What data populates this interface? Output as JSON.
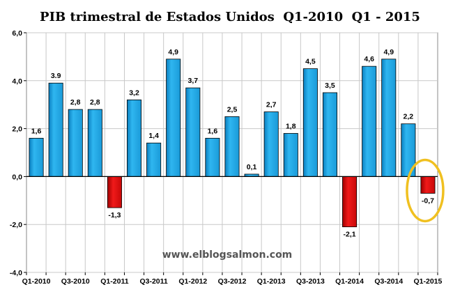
{
  "chart_data": {
    "type": "bar",
    "title": "PIB trimestral de Estados Unidos  Q1-2010  Q1 - 2015",
    "xlabel": "",
    "ylabel": "",
    "ylim": [
      -4.0,
      6.0
    ],
    "y_ticks": [
      "6,0",
      "4,0",
      "2,0",
      "0,0",
      "-2,0",
      "-4,0"
    ],
    "y_tick_values": [
      6,
      4,
      2,
      0,
      -2,
      -4
    ],
    "categories": [
      "Q1-2010",
      "Q2-2010",
      "Q3-2010",
      "Q4-2010",
      "Q1-2011",
      "Q2-2011",
      "Q3-2011",
      "Q4-2011",
      "Q1-2012",
      "Q2-2012",
      "Q3-2012",
      "Q4-2012",
      "Q1-2013",
      "Q2-2013",
      "Q3-2013",
      "Q4-2013",
      "Q1-2014",
      "Q2-2014",
      "Q3-2014",
      "Q4-2014",
      "Q1-2015"
    ],
    "category_labels_shown": [
      "Q1-2010",
      "",
      "Q3-2010",
      "",
      "Q1-2011",
      "",
      "Q3-2011",
      "",
      "Q1-2012",
      "",
      "Q3-2012",
      "",
      "Q1-2013",
      "",
      "Q3-2013",
      "",
      "Q1-2014",
      "",
      "Q3-2014",
      "",
      "Q1-2015"
    ],
    "values": [
      1.6,
      3.9,
      2.8,
      2.8,
      -1.3,
      3.2,
      1.4,
      4.9,
      3.7,
      1.6,
      2.5,
      0.1,
      2.7,
      1.8,
      4.5,
      3.5,
      -2.1,
      4.6,
      4.9,
      2.2,
      -0.7
    ],
    "value_labels": [
      "1,6",
      "3.9",
      "2,8",
      "2,8",
      "-1,3",
      "3,2",
      "1,4",
      "4,9",
      "3,7",
      "1,6",
      "2,5",
      "0,1",
      "2,7",
      "1,8",
      "4,5",
      "3,5",
      "-2,1",
      "4,6",
      "4,9",
      "2,2",
      "-0,7"
    ],
    "colors": {
      "positive": "#1aa7e8",
      "negative": "#e01010",
      "highlight": "#f0c020",
      "grid": "#c8c8c8"
    },
    "highlighted_category": "Q1-2015",
    "grid": true,
    "legend": "none",
    "watermark": "www.elblogsalmon.com"
  }
}
